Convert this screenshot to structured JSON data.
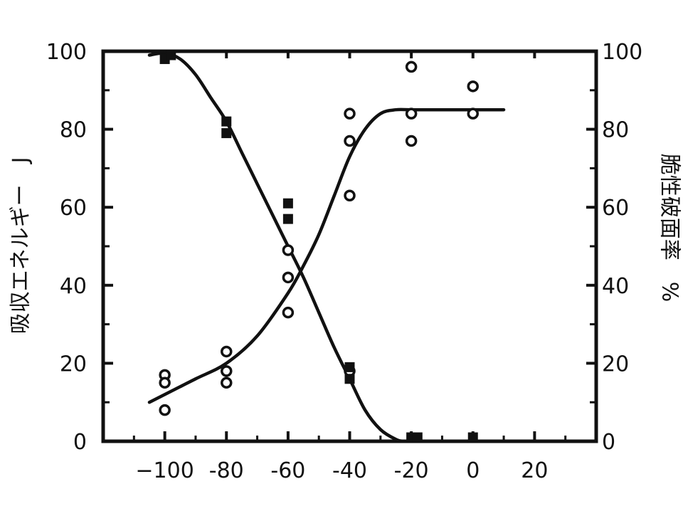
{
  "chart_data": {
    "type": "scatter",
    "title": "",
    "xlabel": "",
    "ylabel_left": "吸収エネルギー　J",
    "ylabel_right": "脆性破面率　%",
    "xlim": [
      -120,
      40
    ],
    "ylim_left": [
      0,
      100
    ],
    "ylim_right": [
      0,
      100
    ],
    "x_ticks": [
      -100,
      -80,
      -60,
      -40,
      -20,
      0,
      20
    ],
    "x_tick_labels": [
      "−100",
      "-80",
      "-60",
      "-40",
      "-20",
      "0",
      "20"
    ],
    "y_ticks_left": [
      0,
      20,
      40,
      60,
      80,
      100
    ],
    "y_tick_labels_left": [
      "0",
      "20",
      "40",
      "60",
      "80",
      "100"
    ],
    "y_ticks_right": [
      0,
      20,
      40,
      60,
      80,
      100
    ],
    "y_tick_labels_right": [
      "0",
      "20",
      "40",
      "60",
      "80",
      "100"
    ],
    "grid": false,
    "series": [
      {
        "axis": "left",
        "style": "open-circle",
        "points": [
          [
            -100,
            17
          ],
          [
            -100,
            15
          ],
          [
            -100,
            8
          ],
          [
            -80,
            23
          ],
          [
            -80,
            18
          ],
          [
            -80,
            15
          ],
          [
            -60,
            49
          ],
          [
            -60,
            42
          ],
          [
            -60,
            33
          ],
          [
            -40,
            84
          ],
          [
            -40,
            77
          ],
          [
            -40,
            63
          ],
          [
            -40,
            18
          ],
          [
            -20,
            96
          ],
          [
            -20,
            84
          ],
          [
            -20,
            77
          ],
          [
            0,
            91
          ],
          [
            0,
            84
          ]
        ],
        "curve": [
          [
            -105,
            10
          ],
          [
            -100,
            12
          ],
          [
            -90,
            16
          ],
          [
            -80,
            20
          ],
          [
            -70,
            27
          ],
          [
            -60,
            38
          ],
          [
            -55,
            45
          ],
          [
            -50,
            53
          ],
          [
            -45,
            63
          ],
          [
            -40,
            73
          ],
          [
            -35,
            80
          ],
          [
            -30,
            84
          ],
          [
            -25,
            85
          ],
          [
            -20,
            85
          ],
          [
            -10,
            85
          ],
          [
            0,
            85
          ],
          [
            10,
            85
          ]
        ]
      },
      {
        "axis": "right",
        "style": "filled-square",
        "points": [
          [
            -100,
            98
          ],
          [
            -98,
            99
          ],
          [
            -80,
            82
          ],
          [
            -80,
            79
          ],
          [
            -60,
            61
          ],
          [
            -60,
            57
          ],
          [
            -40,
            19
          ],
          [
            -40,
            16
          ],
          [
            -20,
            1
          ],
          [
            -18,
            1
          ],
          [
            0,
            1
          ]
        ],
        "curve": [
          [
            -105,
            99
          ],
          [
            -100,
            99.5
          ],
          [
            -95,
            98
          ],
          [
            -90,
            94
          ],
          [
            -85,
            88
          ],
          [
            -80,
            82
          ],
          [
            -75,
            74
          ],
          [
            -70,
            66
          ],
          [
            -65,
            58
          ],
          [
            -60,
            50
          ],
          [
            -55,
            42
          ],
          [
            -50,
            33
          ],
          [
            -45,
            24
          ],
          [
            -40,
            16
          ],
          [
            -35,
            8
          ],
          [
            -30,
            3
          ],
          [
            -25,
            0.5
          ],
          [
            -22,
            0
          ],
          [
            -15,
            0
          ]
        ]
      }
    ]
  }
}
